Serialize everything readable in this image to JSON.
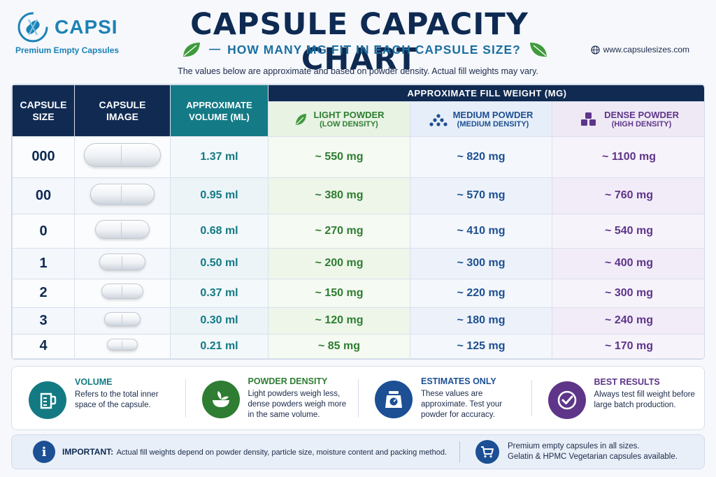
{
  "brand": {
    "name": "CAPSI",
    "tagline": "Premium Empty Capsules"
  },
  "header": {
    "title": "CAPSULE CAPACITY CHART",
    "subtitle": "HOW MANY MG FIT IN EACH CAPSULE SIZE?",
    "website": "www.capsulesizes.com",
    "note": "The values below are approximate and based on powder density. Actual fill weights may vary."
  },
  "table": {
    "headers": {
      "size": [
        "CAPSULE",
        "SIZE"
      ],
      "image": [
        "CAPSULE",
        "IMAGE"
      ],
      "volume": [
        "APPROXIMATE",
        "VOLUME (ML)"
      ],
      "fill_group": "APPROXIMATE FILL WEIGHT (MG)",
      "light": {
        "label": "LIGHT POWDER",
        "sub": "(LOW DENSITY)"
      },
      "medium": {
        "label": "MEDIUM POWDER",
        "sub": "(MEDIUM DENSITY)"
      },
      "dense": {
        "label": "DENSE POWDER",
        "sub": "(HIGH DENSITY)"
      }
    },
    "rows": [
      {
        "size": "000",
        "volume": "1.37 ml",
        "light": "~ 550 mg",
        "medium": "~ 820 mg",
        "dense": "~ 1100 mg"
      },
      {
        "size": "00",
        "volume": "0.95 ml",
        "light": "~ 380 mg",
        "medium": "~ 570 mg",
        "dense": "~ 760 mg"
      },
      {
        "size": "0",
        "volume": "0.68 ml",
        "light": "~ 270 mg",
        "medium": "~ 410 mg",
        "dense": "~ 540 mg"
      },
      {
        "size": "1",
        "volume": "0.50 ml",
        "light": "~ 200 mg",
        "medium": "~ 300 mg",
        "dense": "~ 400 mg"
      },
      {
        "size": "2",
        "volume": "0.37 ml",
        "light": "~ 150 mg",
        "medium": "~ 220 mg",
        "dense": "~ 300 mg"
      },
      {
        "size": "3",
        "volume": "0.30 ml",
        "light": "~ 120 mg",
        "medium": "~ 180 mg",
        "dense": "~ 240 mg"
      },
      {
        "size": "4",
        "volume": "0.21 ml",
        "light": "~ 85 mg",
        "medium": "~ 125 mg",
        "dense": "~ 170 mg"
      }
    ]
  },
  "cards": [
    {
      "title": "VOLUME",
      "text": "Refers to the total inner space of the capsule.",
      "icon": "measuring-cup-icon",
      "color": "#137a84"
    },
    {
      "title": "POWDER DENSITY",
      "text": "Light powders weigh less, dense powders weigh more in the same volume.",
      "icon": "powder-bowl-icon",
      "color": "#2e7d32"
    },
    {
      "title": "ESTIMATES ONLY",
      "text": "These values are approximate. Test your powder for accuracy.",
      "icon": "scale-icon",
      "color": "#1c4f94"
    },
    {
      "title": "BEST RESULTS",
      "text": "Always test fill weight before large batch production.",
      "icon": "checkmark-icon",
      "color": "#5e3589"
    }
  ],
  "footer": {
    "important_label": "IMPORTANT:",
    "important_text": "Actual fill weights depend on powder density, particle size, moisture content and packing method.",
    "promo_line1": "Premium empty capsules in all sizes.",
    "promo_line2": "Gelatin & HPMC Vegetarian capsules available."
  },
  "colors": {
    "navy": "#102a52",
    "teal": "#147a86",
    "light": "#2e7d32",
    "medium": "#1d4f91",
    "dense": "#5e3589"
  }
}
